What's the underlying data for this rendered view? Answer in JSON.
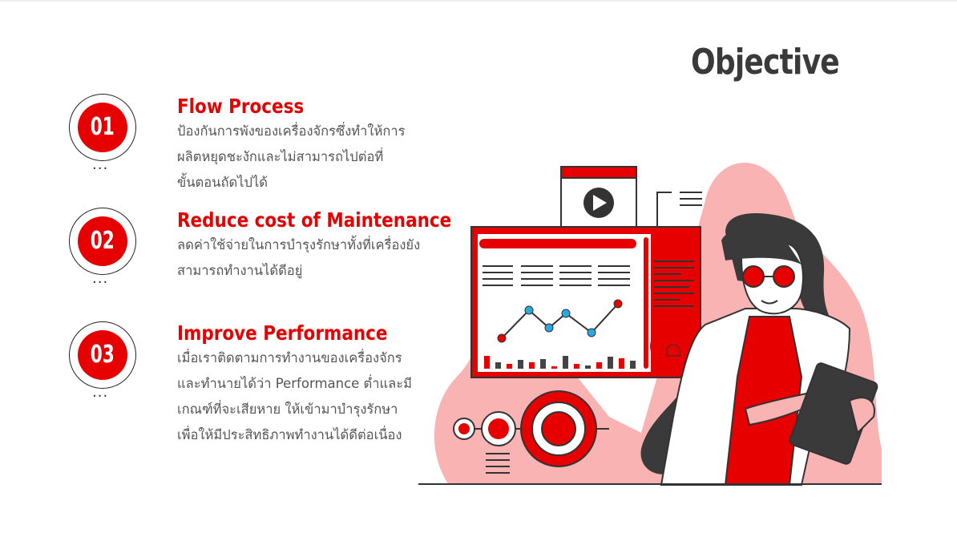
{
  "page": {
    "title": "Objective"
  },
  "objectives": [
    {
      "number": "01",
      "title": "Flow Process",
      "lines": [
        "ป้องกันการพังของเครื่องจักรซึ่งทำให้การ",
        "ผลิตหยุดชะงักและไม่สามารถไปต่อที่",
        "ขั้นตอนถัดไปได้"
      ]
    },
    {
      "number": "02",
      "title": "Reduce cost of Maintenance",
      "lines": [
        "ลดค่าใช้จ่ายในการบำรุงรักษาทั้งที่เครื่องยัง",
        "สามารถทำงานได้ดีอยู่"
      ]
    },
    {
      "number": "03",
      "title": "Improve Performance",
      "lines": [
        "เมื่อเราติดตามการทำงานของเครื่องจักร",
        "และทำนายได้ว่า Performance ต่ำและมี",
        "เกณฑ์ที่จะเสียหาย ให้เข้ามาบำรุงรักษา",
        "เพื่อให้มีประสิทธิภาพทำงานได้ดีต่อเนื่อง"
      ]
    }
  ],
  "dots": "...",
  "colors": {
    "accent": "#e60000",
    "pink": "#f8a6a6",
    "dark": "#333333"
  },
  "illustration": {
    "name": "person-with-tablet-dashboard-illustration",
    "icons": [
      "play-icon",
      "alarm-icon",
      "target-icon"
    ]
  }
}
